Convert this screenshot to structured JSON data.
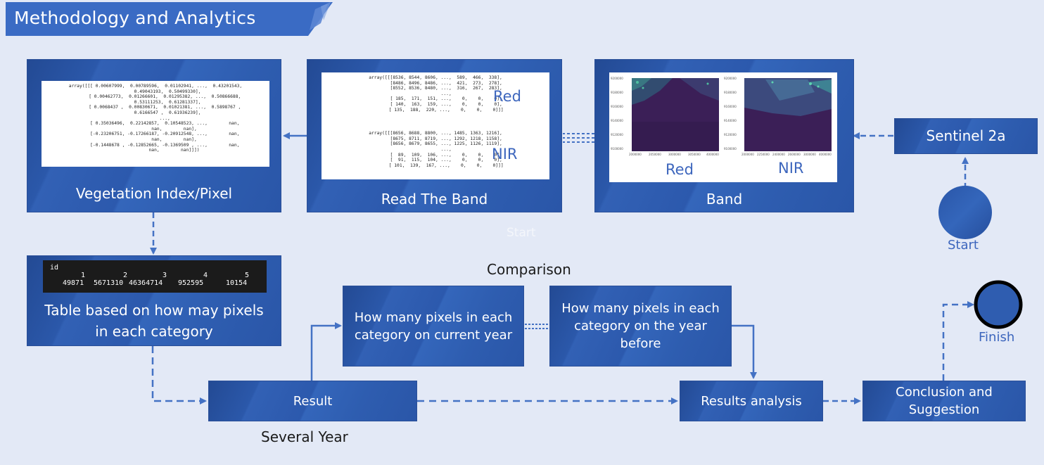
{
  "header": {
    "title": "Methodology and Analytics"
  },
  "nodes": {
    "vegetation": {
      "label": "Vegetation Index/Pixel"
    },
    "read_band": {
      "label": "Read The Band"
    },
    "band": {
      "label": "Band"
    },
    "sentinel": {
      "label": "Sentinel 2a"
    },
    "table": {
      "label": "Table based on how may pixels in each category"
    },
    "current_year": {
      "label": "How many pixels in each category on current year"
    },
    "year_before": {
      "label": "How many pixels in each category on the year before"
    },
    "result": {
      "label": "Result"
    },
    "results_analysis": {
      "label": "Results analysis"
    },
    "conclusion": {
      "label": "Conclusion and Suggestion"
    }
  },
  "labels": {
    "start_faint": "Start",
    "start": "Start",
    "finish": "Finish",
    "comparison": "Comparison",
    "several_year": "Several Year",
    "read_red": "Red",
    "read_nir": "NIR",
    "band_red": "Red",
    "band_nir": "NIR"
  },
  "code": {
    "vegetation": "array([[[ 0.00607999,  0.00789596,  0.01102941, ...,  0.43201543,\n         0.49043193,  0.50499330],\n       [ 0.00462773,  0.01266601,  0.01295382, ...,  0.50866688,\n         0.53111253,  0.61281337],\n       [ 0.0068437 ,  0.00830671,  0.01021381, ...,  0.5898767 ,\n         0.6166547 ,  0.61936239],\n       ...,\n       [ 0.35036496,  0.22142857,  0.10548523, ...,        nan,\n              nan,        nan],\n       [-0.23206751, -0.17266187, -0.20912548, ...,        nan,\n              nan,        nan],\n       [-0.1448678 , -0.12852665, -0.1369509 , ...,        nan,\n              nan,        nan]]])",
    "read_red": "array([[[8536, 8544, 8606, ...,  589,  466,  338],\n        [8486, 8496, 8486, ...,  421,  273,  278],\n        [8552, 8536, 8480, ...,  316,  267,  283],\n        ...,\n        [ 185,  171,  151, ...,    0,    0,    0],\n        [ 140,  163,  159, ...,    0,    0,    0],\n        [ 135,  188,  220, ...,    0,    0,    0]]]",
    "read_nir": "array([[[8656, 8688, 8800, ..., 1485, 1363, 1216],\n        [8675, 8711, 8719, ..., 1292, 1218, 1158],\n        [8656, 8679, 8655, ..., 1225, 1126, 1119],\n        ...,\n        [  89,  109,  106, ...,    0,    0,    0],\n        [  91,  115,  104, ...,    0,    0,    0],\n        [ 101,  139,  167, ...,    0,    0,    0]]]"
  },
  "pixel_table": {
    "index_name": "id",
    "ids": [
      "1",
      "2",
      "3",
      "4",
      "5"
    ],
    "counts": [
      "49871",
      "5671310",
      "46364714",
      "952595",
      "10154"
    ]
  },
  "raster": {
    "red": {
      "yticks": [
        "9200000",
        "9180000",
        "9160000",
        "9140000",
        "9120000",
        "9100000"
      ],
      "xticks": [
        "2000000",
        "2050000",
        "3000000",
        "3050000",
        "4000000"
      ]
    },
    "nir": {
      "yticks": [
        "9200000",
        "9180000",
        "9160000",
        "9140000",
        "9120000",
        "9100000"
      ],
      "xticks": [
        "2000000",
        "2250000",
        "2400000",
        "2600000",
        "3000000",
        "4000000"
      ]
    }
  },
  "colors": {
    "box_blue": "#2c59ad",
    "header_blue": "#3a6bc4",
    "connector_blue": "#4472c4",
    "background": "#e3e9f6",
    "raster_purple": "#3b1f57"
  }
}
